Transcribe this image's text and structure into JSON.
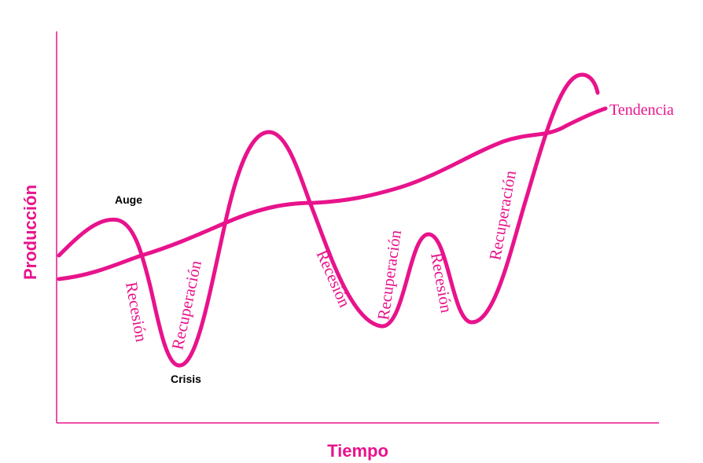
{
  "colors": {
    "accent": "#e8138c",
    "text": "#000000",
    "background": "#ffffff"
  },
  "axes": {
    "x_label": "Tiempo",
    "y_label": "Producción"
  },
  "trend": {
    "label": "Tendencia"
  },
  "points": {
    "peak": "Auge",
    "trough": "Crisis"
  },
  "phases": [
    "Recesión",
    "Recuperación",
    "Recesión",
    "Recuperación",
    "Recesión",
    "Recuperación"
  ]
}
